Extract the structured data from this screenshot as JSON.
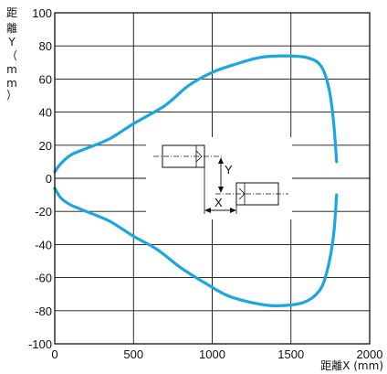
{
  "chart_data": {
    "type": "line",
    "title": "",
    "xlabel": "距離X (mm)",
    "ylabel": "距離Y（mm）",
    "xlim": [
      0,
      2000
    ],
    "ylim": [
      -100,
      100
    ],
    "x_ticks": [
      "0",
      "500",
      "1000",
      "1500",
      "2000"
    ],
    "y_ticks": [
      "100",
      "80",
      "60",
      "40",
      "20",
      "0",
      "-20",
      "-40",
      "-60",
      "-80",
      "-100"
    ],
    "grid": true,
    "line_color": "#1aa6e0",
    "series": [
      {
        "values": [
          [
            1790,
            10
          ],
          [
            1770,
            35
          ],
          [
            1740,
            55
          ],
          [
            1690,
            68
          ],
          [
            1600,
            73
          ],
          [
            1450,
            74
          ],
          [
            1300,
            73
          ],
          [
            1150,
            69
          ],
          [
            1000,
            64
          ],
          [
            850,
            56
          ],
          [
            700,
            44
          ],
          [
            500,
            33
          ],
          [
            350,
            24
          ],
          [
            200,
            18
          ],
          [
            100,
            14
          ],
          [
            40,
            9
          ],
          [
            0,
            4
          ]
        ]
      },
      {
        "values": [
          [
            1790,
            -10
          ],
          [
            1770,
            -35
          ],
          [
            1730,
            -56
          ],
          [
            1680,
            -68
          ],
          [
            1580,
            -75
          ],
          [
            1400,
            -77
          ],
          [
            1250,
            -75
          ],
          [
            1100,
            -71
          ],
          [
            950,
            -63
          ],
          [
            800,
            -54
          ],
          [
            650,
            -43
          ],
          [
            500,
            -35
          ],
          [
            350,
            -26
          ],
          [
            200,
            -20
          ],
          [
            100,
            -16
          ],
          [
            40,
            -12
          ],
          [
            0,
            -6
          ]
        ]
      }
    ],
    "annotations": {
      "diagram_y": "Y",
      "diagram_x": "X"
    }
  }
}
